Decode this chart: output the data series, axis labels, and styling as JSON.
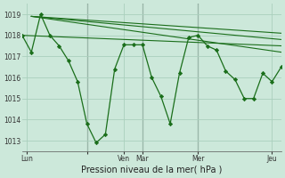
{
  "background_color": "#cce8da",
  "grid_color": "#aacfbd",
  "line_color": "#1a6e1a",
  "marker_color": "#1a6e1a",
  "xlabel": "Pression niveau de la mer( hPa )",
  "ylim": [
    1012.5,
    1019.5
  ],
  "yticks": [
    1013,
    1014,
    1015,
    1016,
    1017,
    1018,
    1019
  ],
  "xlim": [
    0,
    28
  ],
  "xtick_positions": [
    0.5,
    7,
    11,
    13,
    19,
    27
  ],
  "xtick_labels": [
    "Lun",
    "",
    "Ven",
    "Mar",
    "Mer",
    "Jeu"
  ],
  "vlines": [
    7,
    13,
    19
  ],
  "trend_lines": [
    {
      "x": [
        0,
        28
      ],
      "y": [
        1018.0,
        1017.5
      ]
    },
    {
      "x": [
        1,
        28
      ],
      "y": [
        1018.9,
        1018.1
      ]
    },
    {
      "x": [
        1,
        28
      ],
      "y": [
        1018.9,
        1017.8
      ]
    },
    {
      "x": [
        1,
        28
      ],
      "y": [
        1018.9,
        1017.2
      ]
    }
  ],
  "main_x": [
    0,
    1,
    2,
    3,
    4,
    5,
    6,
    7,
    8,
    9,
    10,
    11,
    12,
    13,
    14,
    15,
    16,
    17,
    18,
    19,
    20,
    21,
    22,
    23,
    24,
    25,
    26,
    27,
    28
  ],
  "main_y": [
    1018.0,
    1017.2,
    1019.0,
    1018.0,
    1017.5,
    1016.8,
    1015.8,
    1013.8,
    1012.9,
    1013.3,
    1016.4,
    1017.55,
    1017.55,
    1017.55,
    1016.0,
    1015.1,
    1013.8,
    1016.2,
    1017.9,
    1018.0,
    1017.5,
    1017.3,
    1016.3,
    1015.9,
    1015.0,
    1015.0,
    1016.2,
    1015.8,
    1016.5
  ]
}
